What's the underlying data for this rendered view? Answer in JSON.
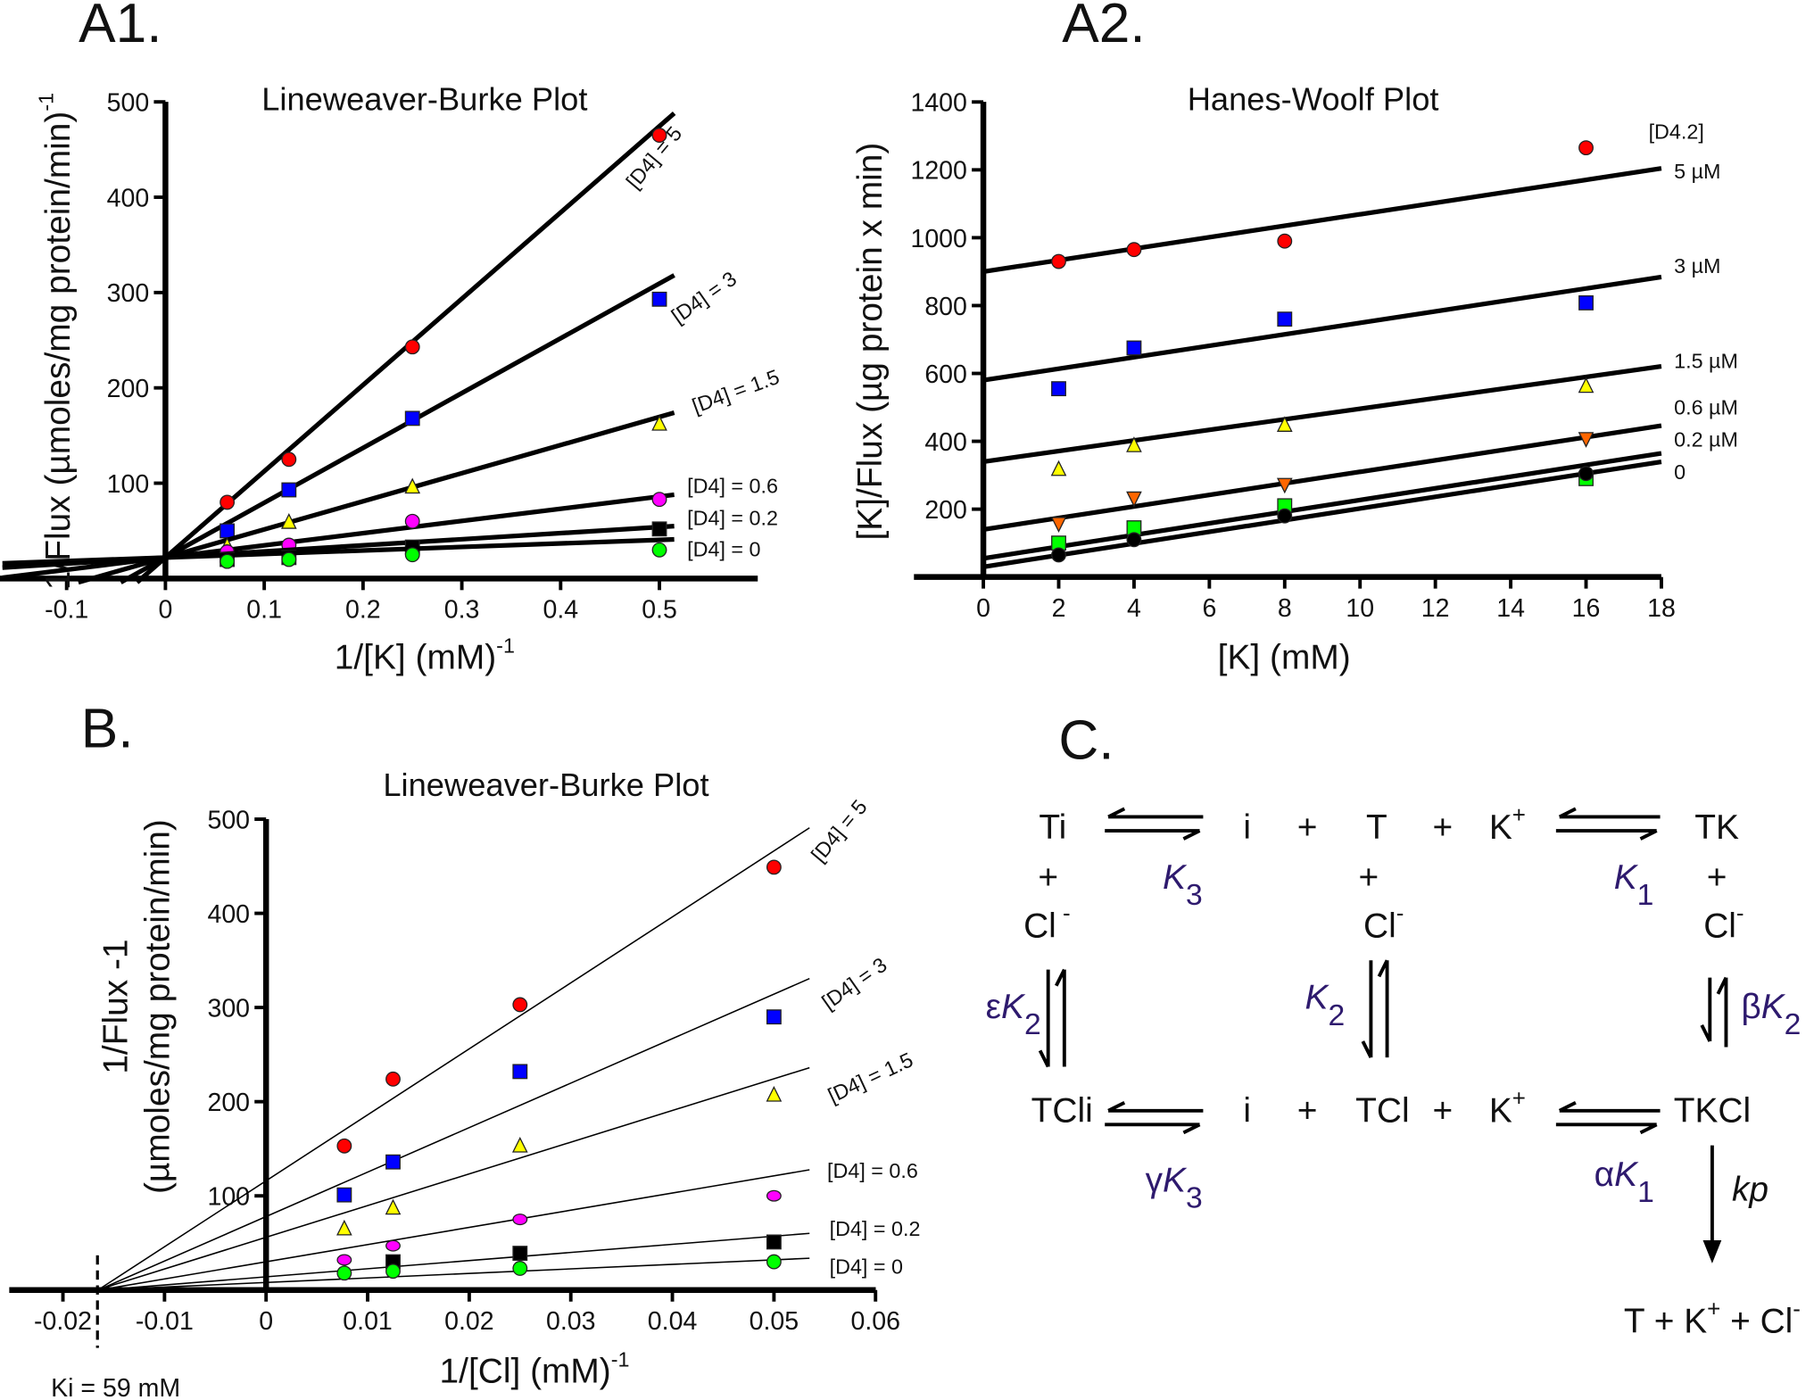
{
  "panels": {
    "a1": "A1.",
    "a2": "A2.",
    "b": "B.",
    "c": "C."
  },
  "chart_data": [
    {
      "id": "A1",
      "type": "scatter",
      "title": "Lineweaver-Burke Plot",
      "xlabel": "1/[K] (mM)",
      "xlabel_sup": "-1",
      "ylabel": "1/Flux (µmoles/mg protein/min)",
      "ylabel_sup": "-1",
      "xlim": [
        -0.165,
        0.6
      ],
      "ylim": [
        0,
        500
      ],
      "xticks": [
        "-0.1",
        "0",
        "0.1",
        "0.2",
        "0.3",
        "0.4",
        "0.5"
      ],
      "yticks": [
        "100",
        "200",
        "300",
        "400",
        "500"
      ],
      "grid": false,
      "x": [
        0.0625,
        0.125,
        0.25,
        0.5
      ],
      "series": [
        {
          "name": "[D4] = 5",
          "marker": "circle",
          "color": "#ff0000",
          "values": [
            80,
            125,
            243,
            465
          ],
          "fit": {
            "slope": 905,
            "intercept": 22
          }
        },
        {
          "name": "[D4] = 3",
          "marker": "square",
          "color": "#0000ff",
          "values": [
            50,
            93,
            168,
            293
          ],
          "fit": {
            "slope": 575,
            "intercept": 22
          }
        },
        {
          "name": "[D4] = 1.5",
          "marker": "triangle",
          "color": "#ffff00",
          "values": [
            35,
            60,
            97,
            163
          ],
          "fit": {
            "slope": 295,
            "intercept": 22
          }
        },
        {
          "name": "[D4] = 0.6",
          "marker": "circle",
          "color": "#ff00ff",
          "values": [
            28,
            35,
            60,
            83
          ],
          "fit": {
            "slope": 128,
            "intercept": 22
          }
        },
        {
          "name": "[D4] = 0.2",
          "marker": "square",
          "color": "#000000",
          "values": [
            20,
            22,
            33,
            52
          ],
          "fit": {
            "slope": 64,
            "intercept": 22
          }
        },
        {
          "name": "[D4] = 0",
          "marker": "circle",
          "color": "#00ff00",
          "values": [
            18,
            20,
            25,
            30
          ],
          "fit": {
            "slope": 37,
            "intercept": 22
          }
        }
      ]
    },
    {
      "id": "A2",
      "type": "scatter",
      "title": "Hanes-Woolf Plot",
      "xlabel": "[K] (mM)",
      "ylabel": "[K]/Flux (µg protein x min)",
      "legend_title": "[D4.2]",
      "xlim": [
        -1.8,
        18
      ],
      "ylim": [
        0,
        1400
      ],
      "xticks": [
        "0",
        "2",
        "4",
        "6",
        "8",
        "10",
        "12",
        "14",
        "16",
        "18"
      ],
      "yticks": [
        "200",
        "400",
        "600",
        "800",
        "1000",
        "1200",
        "1400"
      ],
      "grid": false,
      "x": [
        2,
        4,
        8,
        16
      ],
      "series": [
        {
          "name": "5 µM",
          "marker": "circle",
          "color": "#ff0000",
          "values": [
            930,
            965,
            990,
            1265
          ],
          "fit": {
            "slope": 16.9,
            "intercept": 900
          }
        },
        {
          "name": "3 µM",
          "marker": "square",
          "color": "#0000ff",
          "values": [
            555,
            675,
            760,
            808
          ],
          "fit": {
            "slope": 16.9,
            "intercept": 580
          }
        },
        {
          "name": "1.5 µM",
          "marker": "triangle",
          "color": "#ffff00",
          "values": [
            320,
            390,
            450,
            565
          ],
          "fit": {
            "slope": 15.6,
            "intercept": 340
          }
        },
        {
          "name": "0.6 µM",
          "marker": "triangle-down",
          "color": "#ff6600",
          "values": [
            155,
            230,
            270,
            405
          ],
          "fit": {
            "slope": 17.0,
            "intercept": 140
          }
        },
        {
          "name": "0.2 µM",
          "marker": "square",
          "color": "#00ff00",
          "values": [
            100,
            145,
            210,
            290
          ],
          "fit": {
            "slope": 17.2,
            "intercept": 55
          }
        },
        {
          "name": "0",
          "marker": "circle",
          "color": "#000000",
          "values": [
            65,
            110,
            180,
            305
          ],
          "fit": {
            "slope": 17.2,
            "intercept": 30
          }
        }
      ]
    },
    {
      "id": "B",
      "type": "scatter",
      "title": "Lineweaver-Burke Plot",
      "xlabel": "1/[Cl] (mM)",
      "xlabel_sup": "-1",
      "ylabel": "1/Flux -1",
      "ylabel2": "(µmoles/mg protein/min)",
      "annotation": "Ki = 59 mM",
      "xlim": [
        -0.025,
        0.06
      ],
      "ylim": [
        0,
        500
      ],
      "xticks": [
        "-0.02",
        "-0.01",
        "0",
        "0.01",
        "0.02",
        "0.03",
        "0.04",
        "0.05",
        "0.06"
      ],
      "yticks": [
        "100",
        "200",
        "300",
        "400",
        "500"
      ],
      "grid": false,
      "x": [
        0.0077,
        0.0125,
        0.025,
        0.05
      ],
      "series": [
        {
          "name": "[D4] = 5",
          "marker": "circle",
          "color": "#ff0000",
          "values": [
            153,
            224,
            303,
            449
          ],
          "fit": {
            "slope": 7006,
            "intercept": 116
          }
        },
        {
          "name": "[D4] = 3",
          "marker": "square",
          "color": "#0000ff",
          "values": [
            101,
            136,
            232,
            290
          ],
          "fit": {
            "slope": 4724,
            "intercept": 78
          }
        },
        {
          "name": "[D4] = 1.5",
          "marker": "triangle",
          "color": "#ffff00",
          "values": [
            66,
            88,
            154,
            208
          ],
          "fit": {
            "slope": 3366,
            "intercept": 56
          }
        },
        {
          "name": "[D4] = 0.6",
          "marker": "ellipse",
          "color": "#ff00ff",
          "values": [
            32,
            47,
            75,
            100
          ],
          "fit": {
            "slope": 1825,
            "intercept": 30
          }
        },
        {
          "name": "[D4] = 0.2",
          "marker": "square",
          "color": "#000000",
          "values": [
            null,
            30,
            39,
            51
          ],
          "fit": {
            "slope": 863,
            "intercept": 14
          }
        },
        {
          "name": "[D4] = 0",
          "marker": "circle",
          "color": "#00ff00",
          "values": [
            18,
            20,
            23,
            30
          ],
          "fit": {
            "slope": 481,
            "intercept": 8
          }
        }
      ]
    }
  ],
  "diagram": {
    "color_constants": "#2e1a6e",
    "labels": [
      {
        "t": "Ti"
      },
      {
        "t": "i"
      },
      {
        "t": "+"
      },
      {
        "t": "T"
      },
      {
        "t": "+"
      },
      {
        "t": "K",
        "sup": "+"
      },
      {
        "t": "TK"
      },
      {
        "t": "+"
      },
      {
        "t": "+"
      },
      {
        "t": "+"
      },
      {
        "t": "Cl",
        "sup": " -"
      },
      {
        "t": "Cl",
        "sup": "-"
      },
      {
        "t": "Cl",
        "sup": "-"
      },
      {
        "t": "TCli"
      },
      {
        "t": "i"
      },
      {
        "t": "+"
      },
      {
        "t": "TCl"
      },
      {
        "t": "+"
      },
      {
        "t": "K",
        "sup": "+"
      },
      {
        "t": "TKCl"
      },
      {
        "t": "T + K",
        "sup": "+",
        "t2": " + Cl",
        "sup2": "-"
      }
    ],
    "constants": [
      {
        "pre": "",
        "t": "K",
        "sub": "3"
      },
      {
        "pre": "",
        "t": "K",
        "sub": "1"
      },
      {
        "pre": "ε",
        "t": "K",
        "sub": "2"
      },
      {
        "pre": "",
        "t": "K",
        "sub": "2"
      },
      {
        "pre": "β",
        "t": "K",
        "sub": "2"
      },
      {
        "pre": "γ",
        "t": "K",
        "sub": "3"
      },
      {
        "pre": "α",
        "t": "K",
        "sub": "1"
      }
    ],
    "rate": "kp"
  }
}
